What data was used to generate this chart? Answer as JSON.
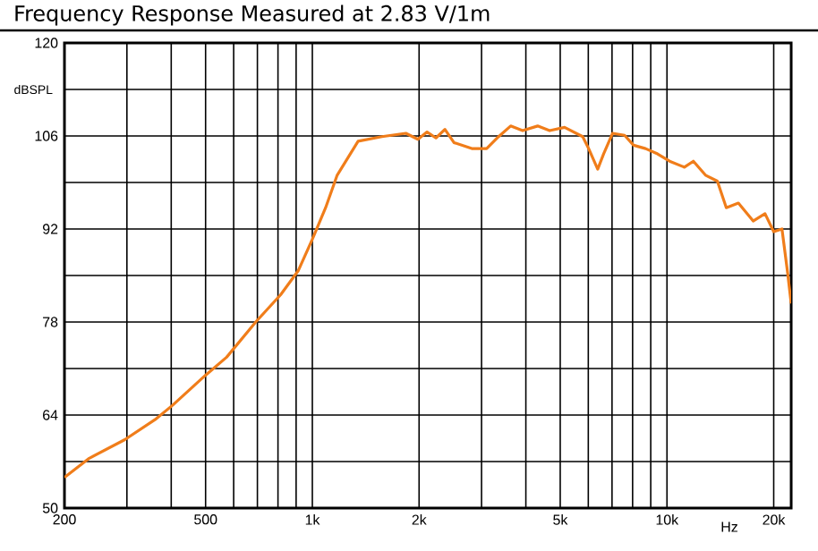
{
  "chart_data": {
    "type": "line",
    "title": "Frequency Response Measured at 2.83 V/1m",
    "ylabel": "dBSPL",
    "xlabel": "Hz",
    "log": "x",
    "grid": true,
    "xlim": [
      200,
      22400
    ],
    "ylim": [
      50,
      120
    ],
    "xticks": [
      200,
      {
        "value": 300,
        "label": null
      },
      {
        "value": 400,
        "label": null
      },
      500,
      {
        "value": 600,
        "label": null
      },
      {
        "value": 700,
        "label": null
      },
      {
        "value": 800,
        "label": null
      },
      {
        "value": 900,
        "label": null
      },
      {
        "value": 1000,
        "label": "1k"
      },
      {
        "value": 2000,
        "label": "2k"
      },
      {
        "value": 3000,
        "label": null
      },
      {
        "value": 4000,
        "label": null
      },
      {
        "value": 5000,
        "label": "5k"
      },
      {
        "value": 6000,
        "label": null
      },
      {
        "value": 7000,
        "label": null
      },
      {
        "value": 8000,
        "label": null
      },
      {
        "value": 9000,
        "label": null
      },
      {
        "value": 10000,
        "label": "10k"
      },
      {
        "value": 20000,
        "label": "20k"
      }
    ],
    "yticks": [
      50,
      {
        "value": 57,
        "label": null
      },
      64,
      {
        "value": 71,
        "label": null
      },
      78,
      {
        "value": 85,
        "label": null
      },
      92,
      {
        "value": 99,
        "label": null
      },
      106,
      {
        "value": 113,
        "label": null
      },
      120
    ],
    "series": [
      {
        "color": "#f07d1a",
        "x": [
          200,
          235,
          296,
          360,
          404,
          500,
          573,
          695,
          814,
          912,
          999,
          1090,
          1175,
          1346,
          1571,
          1835,
          1985,
          2106,
          2231,
          2365,
          2508,
          2816,
          3101,
          3352,
          3624,
          3918,
          4318,
          4668,
          5144,
          5786,
          6014,
          6378,
          6627,
          7023,
          7593,
          8051,
          8702,
          9407,
          10170,
          11200,
          11870,
          12840,
          13870,
          14700,
          15900,
          17500,
          18900,
          20000,
          21100,
          21900,
          22400
        ],
        "values": [
          54.6,
          57.5,
          60.3,
          63.3,
          65.5,
          70.0,
          72.7,
          78.1,
          82.1,
          85.7,
          90.4,
          95.2,
          100.1,
          105.2,
          105.9,
          106.4,
          105.5,
          106.6,
          105.7,
          107.0,
          105.0,
          104.1,
          104.1,
          105.9,
          107.5,
          106.8,
          107.5,
          106.8,
          107.3,
          105.9,
          104.1,
          101.0,
          103.3,
          106.4,
          106.1,
          104.6,
          104.1,
          103.3,
          102.2,
          101.3,
          102.2,
          100.1,
          99.2,
          95.2,
          95.9,
          93.2,
          94.3,
          91.6,
          92.0,
          85.3,
          80.8
        ]
      }
    ]
  }
}
